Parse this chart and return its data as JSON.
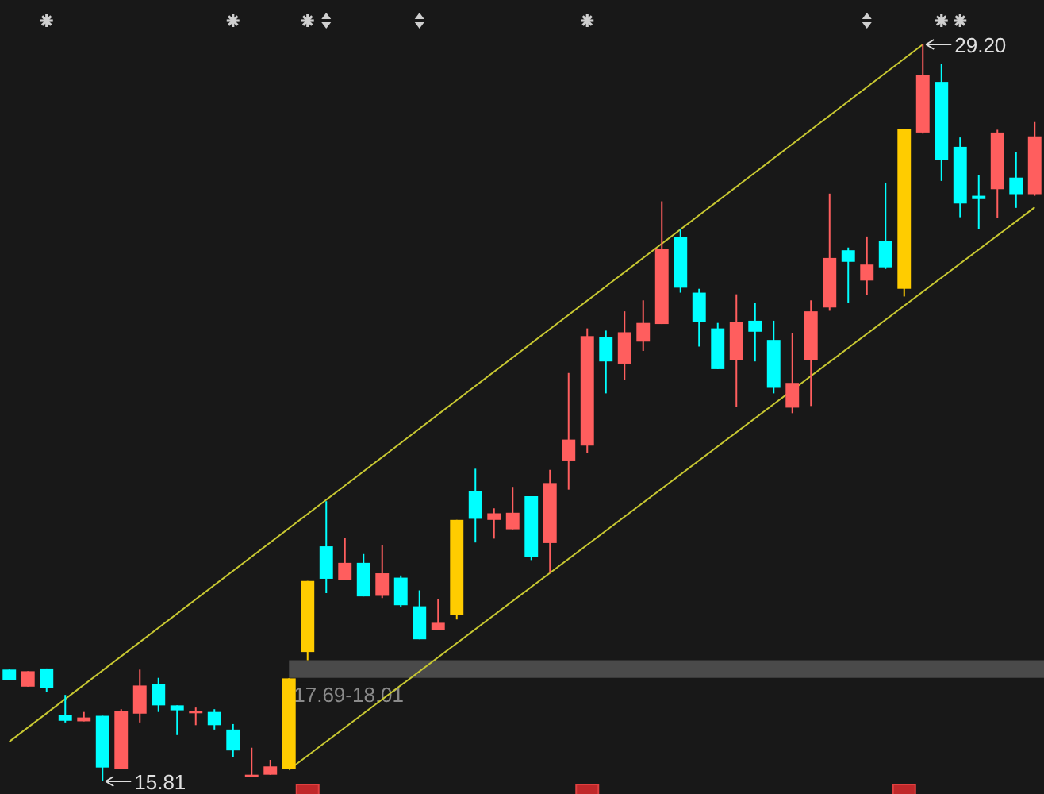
{
  "chart_data": {
    "type": "candlestick",
    "categories": [
      null,
      null,
      null,
      null,
      null,
      null,
      null,
      null,
      null,
      null,
      null,
      null,
      null,
      null,
      null,
      null,
      null,
      null,
      null,
      null,
      null,
      null,
      null,
      null,
      null,
      null,
      null,
      null,
      null,
      null,
      null,
      null,
      null,
      null,
      null,
      null,
      null,
      null,
      null,
      null,
      null,
      null,
      null,
      null,
      null,
      null,
      null,
      null,
      null,
      null,
      null,
      null,
      null,
      null,
      null,
      null
    ],
    "ohlc": [
      [
        17.84,
        17.84,
        17.65,
        17.65
      ],
      [
        17.53,
        17.81,
        17.53,
        17.81
      ],
      [
        17.86,
        17.86,
        17.43,
        17.5
      ],
      [
        17.02,
        17.38,
        16.88,
        16.91
      ],
      [
        16.9,
        17.07,
        16.9,
        16.97
      ],
      [
        17.0,
        17.0,
        15.81,
        16.06
      ],
      [
        16.03,
        17.12,
        16.03,
        17.09
      ],
      [
        17.04,
        17.84,
        16.88,
        17.55
      ],
      [
        17.58,
        17.69,
        17.07,
        17.19
      ],
      [
        17.19,
        17.19,
        16.65,
        17.1
      ],
      [
        17.06,
        17.15,
        16.83,
        17.09
      ],
      [
        17.07,
        17.12,
        16.75,
        16.83
      ],
      [
        16.75,
        16.85,
        16.25,
        16.37
      ],
      [
        15.89,
        16.42,
        15.89,
        15.93
      ],
      [
        15.93,
        16.2,
        15.93,
        16.08
      ],
      [
        16.04,
        17.68,
        16.04,
        17.68
      ],
      [
        18.16,
        19.45,
        18.01,
        19.45
      ],
      [
        20.08,
        20.9,
        19.23,
        19.49
      ],
      [
        19.47,
        20.24,
        19.47,
        19.78
      ],
      [
        19.78,
        19.94,
        19.17,
        19.17
      ],
      [
        19.18,
        20.1,
        19.14,
        19.59
      ],
      [
        19.51,
        19.55,
        18.97,
        19.01
      ],
      [
        18.99,
        19.28,
        18.39,
        18.39
      ],
      [
        18.56,
        19.12,
        18.56,
        18.69
      ],
      [
        18.83,
        20.56,
        18.75,
        20.56
      ],
      [
        21.09,
        21.49,
        20.15,
        20.58
      ],
      [
        20.56,
        20.77,
        20.22,
        20.68
      ],
      [
        20.39,
        21.16,
        20.39,
        20.69
      ],
      [
        20.99,
        20.99,
        19.83,
        19.89
      ],
      [
        20.14,
        21.47,
        19.6,
        21.23
      ],
      [
        21.64,
        23.23,
        21.11,
        22.02
      ],
      [
        21.91,
        24.04,
        21.78,
        23.9
      ],
      [
        23.89,
        24.0,
        22.86,
        23.44
      ],
      [
        23.4,
        24.35,
        23.1,
        23.97
      ],
      [
        23.8,
        24.55,
        23.63,
        24.14
      ],
      [
        24.12,
        26.35,
        24.12,
        25.49
      ],
      [
        25.7,
        25.84,
        24.69,
        24.78
      ],
      [
        24.69,
        24.76,
        23.71,
        24.16
      ],
      [
        24.04,
        24.14,
        23.3,
        23.3
      ],
      [
        23.47,
        24.66,
        22.62,
        24.16
      ],
      [
        24.18,
        24.5,
        23.44,
        23.98
      ],
      [
        23.83,
        24.18,
        22.86,
        22.96
      ],
      [
        22.6,
        23.95,
        22.5,
        23.05
      ],
      [
        23.46,
        24.55,
        22.63,
        24.35
      ],
      [
        24.42,
        26.49,
        24.36,
        25.32
      ],
      [
        25.46,
        25.51,
        24.5,
        25.25
      ],
      [
        24.91,
        25.71,
        24.65,
        25.2
      ],
      [
        25.63,
        26.69,
        25.12,
        25.15
      ],
      [
        24.76,
        27.67,
        24.62,
        27.67
      ],
      [
        27.6,
        29.2,
        27.58,
        28.64
      ],
      [
        28.52,
        28.85,
        26.72,
        27.1
      ],
      [
        27.34,
        27.51,
        26.06,
        26.31
      ],
      [
        26.45,
        26.83,
        25.85,
        26.39
      ],
      [
        26.57,
        27.65,
        26.05,
        27.6
      ],
      [
        26.78,
        27.24,
        26.23,
        26.48
      ],
      [
        26.48,
        27.79,
        26.45,
        27.53
      ]
    ],
    "colors": [
      "#00ffff",
      "#ff5e5e",
      "#00ffff",
      "#00ffff",
      "#ff5e5e",
      "#00ffff",
      "#ff5e5e",
      "#ff5e5e",
      "#00ffff",
      "#00ffff",
      "#ff5e5e",
      "#00ffff",
      "#00ffff",
      "#ff5e5e",
      "#ff5e5e",
      "#ffcc00",
      "#ffcc00",
      "#00ffff",
      "#ff5e5e",
      "#00ffff",
      "#ff5e5e",
      "#00ffff",
      "#00ffff",
      "#ff5e5e",
      "#ffcc00",
      "#00ffff",
      "#ff5e5e",
      "#ff5e5e",
      "#00ffff",
      "#ff5e5e",
      "#ff5e5e",
      "#ff5e5e",
      "#00ffff",
      "#ff5e5e",
      "#ff5e5e",
      "#ff5e5e",
      "#00ffff",
      "#00ffff",
      "#00ffff",
      "#ff5e5e",
      "#00ffff",
      "#00ffff",
      "#ff5e5e",
      "#ff5e5e",
      "#ff5e5e",
      "#00ffff",
      "#ff5e5e",
      "#00ffff",
      "#ffcc00",
      "#ff5e5e",
      "#00ffff",
      "#00ffff",
      "#00ffff",
      "#ff5e5e",
      "#00ffff",
      "#ff5e5e"
    ],
    "series": [
      {
        "type": "line",
        "color": "#c8c832",
        "values": [
          16.53,
          null,
          null,
          null,
          null,
          null,
          null,
          null,
          null,
          null,
          null,
          null,
          null,
          null,
          null,
          null,
          null,
          null,
          null,
          null,
          null,
          null,
          null,
          null,
          null,
          null,
          null,
          null,
          null,
          null,
          null,
          null,
          null,
          null,
          null,
          null,
          null,
          null,
          null,
          null,
          null,
          null,
          null,
          null,
          null,
          null,
          null,
          null,
          null,
          29.2,
          null,
          null,
          null,
          null,
          null,
          null
        ]
      },
      {
        "type": "line",
        "color": "#c8c832",
        "values": [
          null,
          null,
          null,
          null,
          null,
          null,
          null,
          null,
          null,
          null,
          null,
          null,
          null,
          null,
          null,
          16.02,
          null,
          null,
          null,
          null,
          null,
          null,
          null,
          null,
          null,
          null,
          null,
          null,
          null,
          null,
          null,
          null,
          null,
          null,
          null,
          null,
          null,
          null,
          null,
          null,
          null,
          null,
          null,
          null,
          null,
          null,
          null,
          null,
          null,
          null,
          null,
          null,
          null,
          null,
          null,
          26.24
        ]
      }
    ],
    "bands": [
      {
        "axis": "y",
        "from": 17.69,
        "to": 18.01,
        "label": "17.69-18.01",
        "color": "#4a4a4a"
      }
    ],
    "annotations": [
      "29.20",
      "15.81"
    ]
  }
}
